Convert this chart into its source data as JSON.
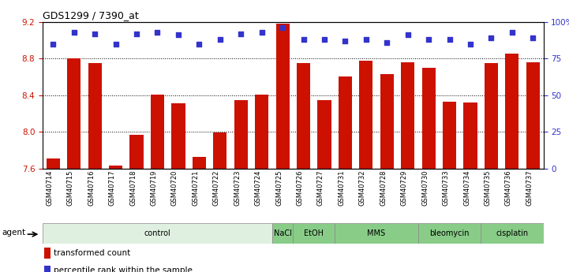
{
  "title": "GDS1299 / 7390_at",
  "samples": [
    "GSM40714",
    "GSM40715",
    "GSM40716",
    "GSM40717",
    "GSM40718",
    "GSM40719",
    "GSM40720",
    "GSM40721",
    "GSM40722",
    "GSM40723",
    "GSM40724",
    "GSM40725",
    "GSM40726",
    "GSM40727",
    "GSM40731",
    "GSM40732",
    "GSM40728",
    "GSM40729",
    "GSM40730",
    "GSM40733",
    "GSM40734",
    "GSM40735",
    "GSM40736",
    "GSM40737"
  ],
  "bar_values": [
    7.71,
    8.8,
    8.75,
    7.63,
    7.97,
    8.41,
    8.31,
    7.73,
    7.99,
    8.35,
    8.41,
    9.18,
    8.75,
    8.35,
    8.6,
    8.78,
    8.63,
    8.76,
    8.7,
    8.33,
    8.32,
    8.75,
    8.85,
    8.76
  ],
  "percentile_values": [
    85,
    93,
    92,
    85,
    92,
    93,
    91,
    85,
    88,
    92,
    93,
    96,
    88,
    88,
    87,
    88,
    86,
    91,
    88,
    88,
    85,
    89,
    93,
    89
  ],
  "ylim": [
    7.6,
    9.2
  ],
  "yticks": [
    7.6,
    8.0,
    8.4,
    8.8,
    9.2
  ],
  "right_yticks": [
    0,
    25,
    50,
    75,
    100
  ],
  "bar_color": "#CC1100",
  "dot_color": "#3333CC",
  "groups": [
    {
      "label": "control",
      "start": 0,
      "end": 11,
      "color": "#e0f0e0"
    },
    {
      "label": "NaCl",
      "start": 11,
      "end": 12,
      "color": "#88cc88"
    },
    {
      "label": "EtOH",
      "start": 12,
      "end": 14,
      "color": "#88cc88"
    },
    {
      "label": "MMS",
      "start": 14,
      "end": 18,
      "color": "#88cc88"
    },
    {
      "label": "bleomycin",
      "start": 18,
      "end": 21,
      "color": "#88cc88"
    },
    {
      "label": "cisplatin",
      "start": 21,
      "end": 24,
      "color": "#88cc88"
    }
  ],
  "legend_bar_label": "transformed count",
  "legend_dot_label": "percentile rank within the sample",
  "bar_width": 0.65
}
